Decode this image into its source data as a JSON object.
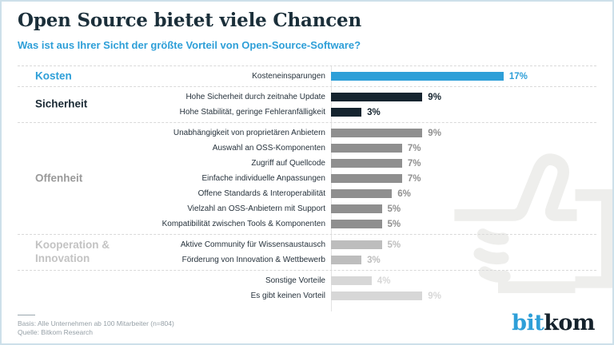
{
  "header": {
    "title": "Open Source bietet viele Chancen",
    "subtitle": "Was ist aus Ihrer Sicht der größte Vorteil von Open-Source-Software?"
  },
  "chart_data": {
    "type": "bar",
    "orientation": "horizontal",
    "unit": "%",
    "xlim": [
      0,
      20
    ],
    "value_label_position": "end-of-bar",
    "groups": [
      {
        "label": "Kosten",
        "label_color": "#2e9fd8",
        "bar_color": "#2e9fd8",
        "value_color": "#2e9fd8",
        "rows": [
          {
            "label": "Kosteneinsparungen",
            "value": 17
          }
        ]
      },
      {
        "label": "Sicherheit",
        "label_color": "#1b2a35",
        "bar_color": "#15242f",
        "value_color": "#15242f",
        "rows": [
          {
            "label": "Hohe Sicherheit durch zeitnahe Update",
            "value": 9
          },
          {
            "label": "Hohe Stabilität, geringe Fehleranfälligkeit",
            "value": 3
          }
        ]
      },
      {
        "label": "Offenheit",
        "label_color": "#9a9a9a",
        "bar_color": "#8f8f8f",
        "value_color": "#8f8f8f",
        "rows": [
          {
            "label": "Unabhängigkeit von proprietären Anbietern",
            "value": 9
          },
          {
            "label": "Auswahl an OSS-Komponenten",
            "value": 7
          },
          {
            "label": "Zugriff auf Quellcode",
            "value": 7
          },
          {
            "label": "Einfache individuelle Anpassungen",
            "value": 7
          },
          {
            "label": "Offene Standards & Interoperabilität",
            "value": 6
          },
          {
            "label": "Vielzahl an OSS-Anbietern mit Support",
            "value": 5
          },
          {
            "label": "Kompatibilität zwischen Tools & Komponenten",
            "value": 5
          }
        ]
      },
      {
        "label": "Kooperation & Innovation",
        "label_color": "#c3c3c3",
        "bar_color": "#bdbdbd",
        "value_color": "#bdbdbd",
        "rows": [
          {
            "label": "Aktive Community für Wissensaustausch",
            "value": 5
          },
          {
            "label": "Förderung von Innovation & Wettbewerb",
            "value": 3
          }
        ]
      },
      {
        "label": "",
        "label_color": "#d7d7d7",
        "bar_color": "#d7d7d7",
        "value_color": "#d7d7d7",
        "rows": [
          {
            "label": "Sonstige Vorteile",
            "value": 4
          },
          {
            "label": "Es gibt keinen Vorteil",
            "value": 9
          }
        ]
      }
    ]
  },
  "watermark": {
    "icon": "thumbs-up-icon",
    "color": "#eeeeec"
  },
  "footer": {
    "basis": "Basis: Alle Unternehmen ab 100 Mitarbeiter (n=804)",
    "quelle": "Quelle: Bitkom Research",
    "logo_part1": "bit",
    "logo_part2": "kom"
  },
  "colors": {
    "accent_blue": "#2e9fd8",
    "dark_navy": "#15242f",
    "border": "#cde0ea"
  }
}
